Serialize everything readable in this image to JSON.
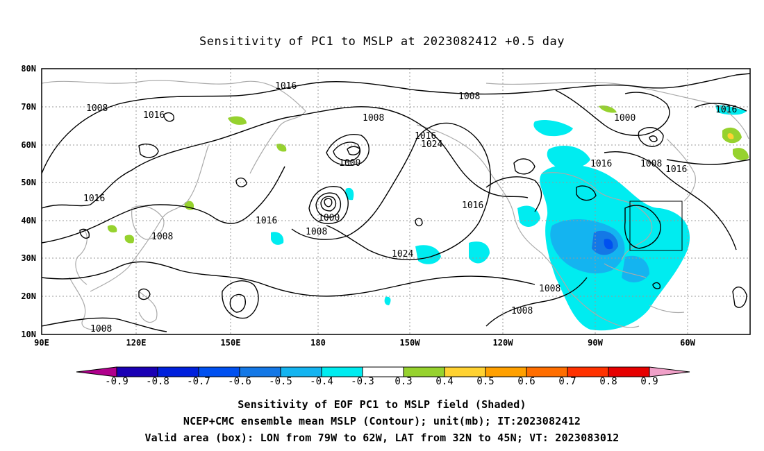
{
  "title": "Sensitivity of PC1 to MSLP at 2023082412 +0.5 day",
  "lat_labels": [
    "80N",
    "70N",
    "60N",
    "50N",
    "40N",
    "30N",
    "20N",
    "10N"
  ],
  "lon_labels": [
    "90E",
    "120E",
    "150E",
    "180",
    "150W",
    "120W",
    "90W",
    "60W"
  ],
  "contour_labels": [
    "1016",
    "1008",
    "1016",
    "1008",
    "1000",
    "1016",
    "1024",
    "1008",
    "1000",
    "1016",
    "1008",
    "1016",
    "1016",
    "1016",
    "1008",
    "1000",
    "1016",
    "1008",
    "1024",
    "1016",
    "1008",
    "1008",
    "1008"
  ],
  "colorbar": {
    "labels": [
      "-0.9",
      "-0.8",
      "-0.7",
      "-0.6",
      "-0.5",
      "-0.4",
      "-0.3",
      "0.3",
      "0.4",
      "0.5",
      "0.6",
      "0.7",
      "0.8",
      "0.9"
    ],
    "colors": [
      "#b0008c",
      "#1a00b4",
      "#0020dc",
      "#0050f0",
      "#1478e6",
      "#14b4f0",
      "#00ecf0",
      "#ffffff",
      "#96d22e",
      "#ffd232",
      "#ffa000",
      "#ff6e00",
      "#ff3200",
      "#e60000",
      "#f0a0c8"
    ]
  },
  "captions": [
    "Sensitivity of EOF PC1 to MSLP field (Shaded)",
    "NCEP+CMC ensemble mean MSLP (Contour); unit(mb); IT:2023082412",
    "Valid area (box): LON from 79W to 62W, LAT from 32N to 45N; VT: 2023083012"
  ]
}
